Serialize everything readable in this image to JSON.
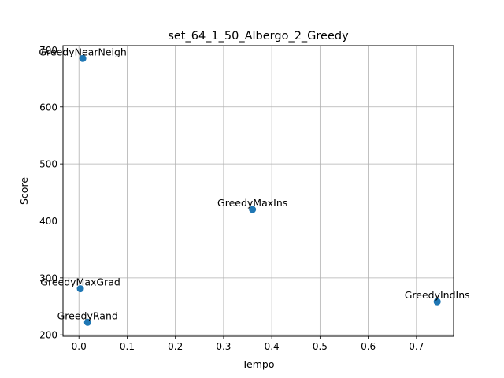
{
  "chart_data": {
    "type": "scatter",
    "title": "set_64_1_50_Albergo_2_Greedy",
    "xlabel": "Tempo",
    "ylabel": "Score",
    "xlim": [
      -0.033,
      0.777
    ],
    "ylim": [
      197.5,
      707.5
    ],
    "xticks": [
      0.0,
      0.1,
      0.2,
      0.3,
      0.4,
      0.5,
      0.6,
      0.7
    ],
    "xtick_labels": [
      "0.0",
      "0.1",
      "0.2",
      "0.3",
      "0.4",
      "0.5",
      "0.6",
      "0.7"
    ],
    "yticks": [
      200,
      300,
      400,
      500,
      600,
      700
    ],
    "ytick_labels": [
      "200",
      "300",
      "400",
      "500",
      "600",
      "700"
    ],
    "grid": true,
    "marker_color": "#1f77b4",
    "points": [
      {
        "label": "GreedyNearNeigh",
        "x": 0.008,
        "y": 685
      },
      {
        "label": "GreedyMaxIns",
        "x": 0.36,
        "y": 420
      },
      {
        "label": "GreedyMaxGrad",
        "x": 0.003,
        "y": 281
      },
      {
        "label": "GreedyIndIns",
        "x": 0.743,
        "y": 258
      },
      {
        "label": "GreedyRand",
        "x": 0.018,
        "y": 222
      }
    ]
  }
}
